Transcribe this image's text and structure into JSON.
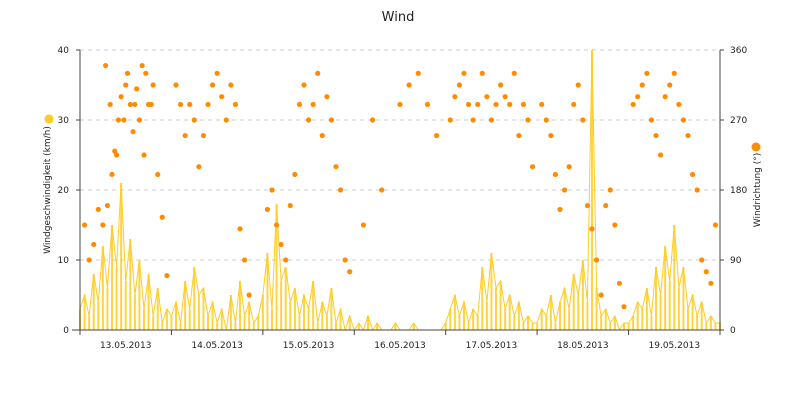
{
  "chart_data": {
    "type": "line",
    "title": "Wind",
    "x_categories": [
      "13.05.2013",
      "14.05.2013",
      "15.05.2013",
      "16.05.2013",
      "17.05.2013",
      "18.05.2013",
      "19.05.2013"
    ],
    "y_left": {
      "label": "Windgeschwindigkeit (km/h)",
      "range": [
        0,
        40
      ],
      "ticks": [
        0,
        10,
        20,
        30,
        40
      ]
    },
    "y_right": {
      "label": "Windrichtung (°)",
      "range": [
        0,
        360
      ],
      "ticks": [
        0,
        90,
        180,
        270,
        360
      ]
    },
    "grid": true,
    "colors": {
      "speed": "#ffcc22",
      "direction": "#ff8c00",
      "grid": "#cccccc",
      "axis": "#444444"
    },
    "series": [
      {
        "name": "Windgeschwindigkeit (km/h)",
        "type": "area-line",
        "axis": "left",
        "x": [
          0.0,
          0.05,
          0.1,
          0.15,
          0.2,
          0.25,
          0.3,
          0.35,
          0.4,
          0.45,
          0.5,
          0.55,
          0.6,
          0.65,
          0.7,
          0.75,
          0.8,
          0.85,
          0.9,
          0.95,
          1.0,
          1.05,
          1.1,
          1.15,
          1.2,
          1.25,
          1.3,
          1.35,
          1.4,
          1.45,
          1.5,
          1.55,
          1.6,
          1.65,
          1.7,
          1.75,
          1.8,
          1.85,
          1.9,
          1.95,
          2.0,
          2.05,
          2.1,
          2.15,
          2.2,
          2.25,
          2.3,
          2.35,
          2.4,
          2.45,
          2.5,
          2.55,
          2.6,
          2.65,
          2.7,
          2.75,
          2.8,
          2.85,
          2.9,
          2.95,
          3.0,
          3.05,
          3.1,
          3.15,
          3.2,
          3.25,
          3.3,
          3.35,
          3.4,
          3.45,
          3.5,
          3.55,
          3.6,
          3.65,
          3.7,
          3.75,
          3.8,
          3.85,
          3.9,
          3.95,
          4.0,
          4.05,
          4.1,
          4.15,
          4.2,
          4.25,
          4.3,
          4.35,
          4.4,
          4.45,
          4.5,
          4.55,
          4.6,
          4.65,
          4.7,
          4.75,
          4.8,
          4.85,
          4.9,
          4.95,
          5.0,
          5.05,
          5.1,
          5.15,
          5.2,
          5.25,
          5.3,
          5.35,
          5.4,
          5.45,
          5.5,
          5.55,
          5.6,
          5.65,
          5.7,
          5.75,
          5.8,
          5.85,
          5.9,
          5.95,
          6.0,
          6.05,
          6.1,
          6.15,
          6.2,
          6.25,
          6.3,
          6.35,
          6.4,
          6.45,
          6.5,
          6.55,
          6.6,
          6.65,
          6.7,
          6.75,
          6.8,
          6.85,
          6.9,
          6.95,
          7.0
        ],
        "values": [
          3,
          5,
          2,
          8,
          4,
          12,
          6,
          15,
          9,
          21,
          7,
          13,
          5,
          10,
          3,
          8,
          2,
          6,
          1,
          3,
          2,
          4,
          1,
          7,
          3,
          9,
          5,
          6,
          2,
          4,
          1,
          3,
          0,
          5,
          1,
          7,
          2,
          4,
          1,
          2,
          5,
          11,
          3,
          18,
          7,
          9,
          4,
          6,
          2,
          5,
          3,
          7,
          1,
          4,
          2,
          6,
          1,
          3,
          0,
          2,
          0,
          1,
          0,
          2,
          0,
          1,
          0,
          0,
          0,
          1,
          0,
          0,
          0,
          1,
          0,
          0,
          0,
          0,
          0,
          0,
          1,
          3,
          5,
          2,
          4,
          1,
          3,
          2,
          9,
          4,
          11,
          6,
          7,
          3,
          5,
          2,
          4,
          1,
          2,
          1,
          1,
          3,
          2,
          5,
          1,
          4,
          6,
          3,
          8,
          5,
          10,
          4,
          40,
          6,
          2,
          3,
          1,
          2,
          0,
          1,
          1,
          2,
          4,
          3,
          6,
          2,
          9,
          5,
          12,
          7,
          15,
          6,
          9,
          3,
          5,
          2,
          4,
          1,
          2,
          1,
          1
        ]
      },
      {
        "name": "Windrichtung (°)",
        "type": "scatter",
        "axis": "right",
        "x": [
          0.05,
          0.1,
          0.15,
          0.2,
          0.25,
          0.3,
          0.35,
          0.38,
          0.42,
          0.45,
          0.5,
          0.52,
          0.55,
          0.58,
          0.6,
          0.62,
          0.65,
          0.68,
          0.7,
          0.72,
          0.75,
          0.78,
          0.8,
          0.85,
          0.9,
          0.95,
          0.48,
          0.4,
          0.33,
          0.28,
          1.05,
          1.1,
          1.15,
          1.2,
          1.25,
          1.3,
          1.35,
          1.4,
          1.45,
          1.5,
          1.55,
          1.6,
          1.65,
          1.7,
          1.75,
          1.8,
          1.85,
          2.05,
          2.1,
          2.15,
          2.2,
          2.25,
          2.3,
          2.35,
          2.4,
          2.45,
          2.5,
          2.55,
          2.6,
          2.65,
          2.7,
          2.75,
          2.8,
          2.85,
          2.9,
          2.95,
          3.1,
          3.2,
          3.3,
          3.5,
          3.6,
          3.7,
          3.8,
          3.9,
          4.05,
          4.1,
          4.15,
          4.2,
          4.25,
          4.3,
          4.35,
          4.4,
          4.45,
          4.5,
          4.55,
          4.6,
          4.65,
          4.7,
          4.75,
          4.8,
          4.85,
          4.9,
          4.95,
          5.05,
          5.1,
          5.15,
          5.2,
          5.25,
          5.3,
          5.35,
          5.4,
          5.45,
          5.5,
          5.55,
          5.6,
          5.65,
          5.7,
          5.75,
          5.8,
          5.85,
          5.9,
          5.95,
          6.05,
          6.1,
          6.15,
          6.2,
          6.25,
          6.3,
          6.35,
          6.4,
          6.45,
          6.5,
          6.55,
          6.6,
          6.65,
          6.7,
          6.75,
          6.8,
          6.85,
          6.9,
          6.95
        ],
        "values": [
          135,
          90,
          110,
          155,
          135,
          160,
          200,
          230,
          270,
          300,
          315,
          330,
          290,
          255,
          290,
          310,
          270,
          340,
          225,
          330,
          290,
          290,
          315,
          200,
          145,
          70,
          270,
          225,
          290,
          340,
          315,
          290,
          250,
          290,
          270,
          210,
          250,
          290,
          315,
          330,
          300,
          270,
          315,
          290,
          130,
          90,
          45,
          155,
          180,
          135,
          110,
          90,
          160,
          200,
          290,
          315,
          270,
          290,
          330,
          250,
          300,
          270,
          210,
          180,
          90,
          75,
          135,
          270,
          180,
          290,
          315,
          330,
          290,
          250,
          270,
          300,
          315,
          330,
          290,
          270,
          290,
          330,
          300,
          270,
          290,
          315,
          300,
          290,
          330,
          250,
          290,
          270,
          210,
          290,
          270,
          250,
          200,
          155,
          180,
          210,
          290,
          315,
          270,
          160,
          130,
          90,
          45,
          160,
          180,
          135,
          60,
          30,
          290,
          300,
          315,
          330,
          270,
          250,
          225,
          300,
          315,
          330,
          290,
          270,
          250,
          200,
          180,
          90,
          75,
          60,
          135
        ]
      }
    ]
  }
}
